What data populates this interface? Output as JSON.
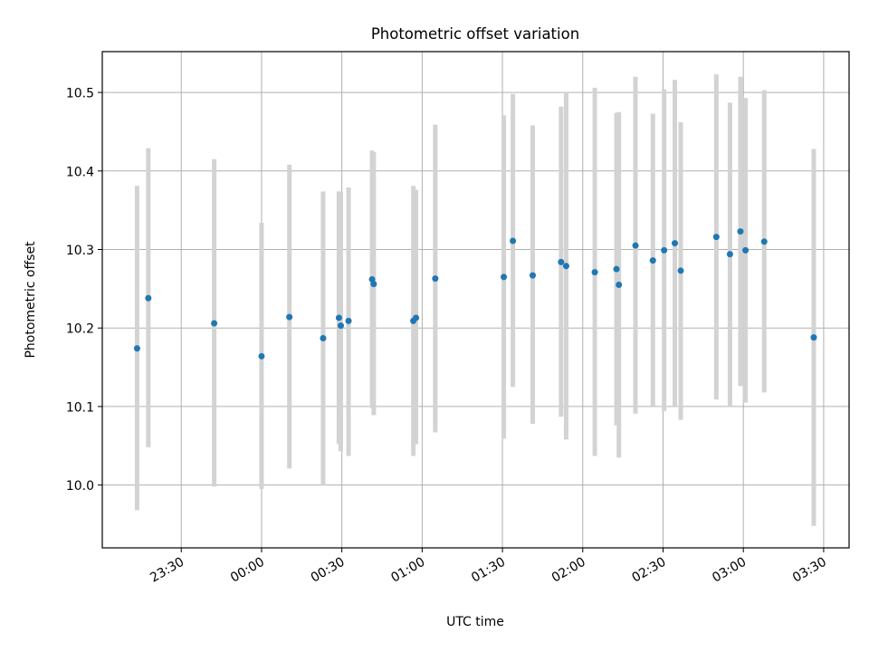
{
  "chart_data": {
    "type": "scatter",
    "title": "Photometric offset variation",
    "xlabel": "UTC time",
    "ylabel": "Photometric offset",
    "x_ticks": [
      "23:30",
      "00:00",
      "00:30",
      "01:00",
      "01:30",
      "02:00",
      "02:30",
      "03:00",
      "03:30"
    ],
    "x_tick_minutes": [
      -30,
      0,
      30,
      60,
      90,
      120,
      150,
      180,
      210
    ],
    "xlim_minutes": [
      -59.5,
      219.5
    ],
    "y_ticks": [
      10.0,
      10.1,
      10.2,
      10.3,
      10.4,
      10.5
    ],
    "ylim": [
      9.92,
      10.552
    ],
    "grid": true,
    "colors": {
      "point": "#1f77b4",
      "errorbar": "#d3d3d3",
      "grid": "#b0b0b0"
    },
    "points": [
      {
        "minute": -46.5,
        "y": 10.174,
        "lo": 9.968,
        "hi": 10.381
      },
      {
        "minute": -42.3,
        "y": 10.238,
        "lo": 10.048,
        "hi": 10.429
      },
      {
        "minute": -17.7,
        "y": 10.206,
        "lo": 9.998,
        "hi": 10.415
      },
      {
        "minute": 0.0,
        "y": 10.164,
        "lo": 9.995,
        "hi": 10.334
      },
      {
        "minute": 10.4,
        "y": 10.214,
        "lo": 10.021,
        "hi": 10.408
      },
      {
        "minute": 23.0,
        "y": 10.187,
        "lo": 10.0,
        "hi": 10.374
      },
      {
        "minute": 28.9,
        "y": 10.213,
        "lo": 10.052,
        "hi": 10.374
      },
      {
        "minute": 29.6,
        "y": 10.203,
        "lo": 10.043,
        "hi": 10.374
      },
      {
        "minute": 32.5,
        "y": 10.209,
        "lo": 10.037,
        "hi": 10.379
      },
      {
        "minute": 41.3,
        "y": 10.262,
        "lo": 10.098,
        "hi": 10.426
      },
      {
        "minute": 41.9,
        "y": 10.256,
        "lo": 10.089,
        "hi": 10.424
      },
      {
        "minute": 56.7,
        "y": 10.209,
        "lo": 10.037,
        "hi": 10.381
      },
      {
        "minute": 57.7,
        "y": 10.213,
        "lo": 10.052,
        "hi": 10.376
      },
      {
        "minute": 64.9,
        "y": 10.263,
        "lo": 10.067,
        "hi": 10.459
      },
      {
        "minute": 90.5,
        "y": 10.265,
        "lo": 10.059,
        "hi": 10.471
      },
      {
        "minute": 93.9,
        "y": 10.311,
        "lo": 10.125,
        "hi": 10.498
      },
      {
        "minute": 101.3,
        "y": 10.267,
        "lo": 10.078,
        "hi": 10.458
      },
      {
        "minute": 111.9,
        "y": 10.284,
        "lo": 10.087,
        "hi": 10.482
      },
      {
        "minute": 113.8,
        "y": 10.279,
        "lo": 10.058,
        "hi": 10.501
      },
      {
        "minute": 124.5,
        "y": 10.271,
        "lo": 10.037,
        "hi": 10.506
      },
      {
        "minute": 132.6,
        "y": 10.275,
        "lo": 10.076,
        "hi": 10.474
      },
      {
        "minute": 133.5,
        "y": 10.255,
        "lo": 10.035,
        "hi": 10.475
      },
      {
        "minute": 139.7,
        "y": 10.305,
        "lo": 10.091,
        "hi": 10.52
      },
      {
        "minute": 146.2,
        "y": 10.286,
        "lo": 10.101,
        "hi": 10.473
      },
      {
        "minute": 150.4,
        "y": 10.299,
        "lo": 10.094,
        "hi": 10.504
      },
      {
        "minute": 154.4,
        "y": 10.308,
        "lo": 10.101,
        "hi": 10.516
      },
      {
        "minute": 156.6,
        "y": 10.273,
        "lo": 10.083,
        "hi": 10.462
      },
      {
        "minute": 169.9,
        "y": 10.316,
        "lo": 10.109,
        "hi": 10.523
      },
      {
        "minute": 175.0,
        "y": 10.294,
        "lo": 10.101,
        "hi": 10.487
      },
      {
        "minute": 178.9,
        "y": 10.323,
        "lo": 10.126,
        "hi": 10.52
      },
      {
        "minute": 180.8,
        "y": 10.299,
        "lo": 10.105,
        "hi": 10.493
      },
      {
        "minute": 187.8,
        "y": 10.31,
        "lo": 10.118,
        "hi": 10.503
      },
      {
        "minute": 206.3,
        "y": 10.188,
        "lo": 9.948,
        "hi": 10.428
      }
    ]
  }
}
